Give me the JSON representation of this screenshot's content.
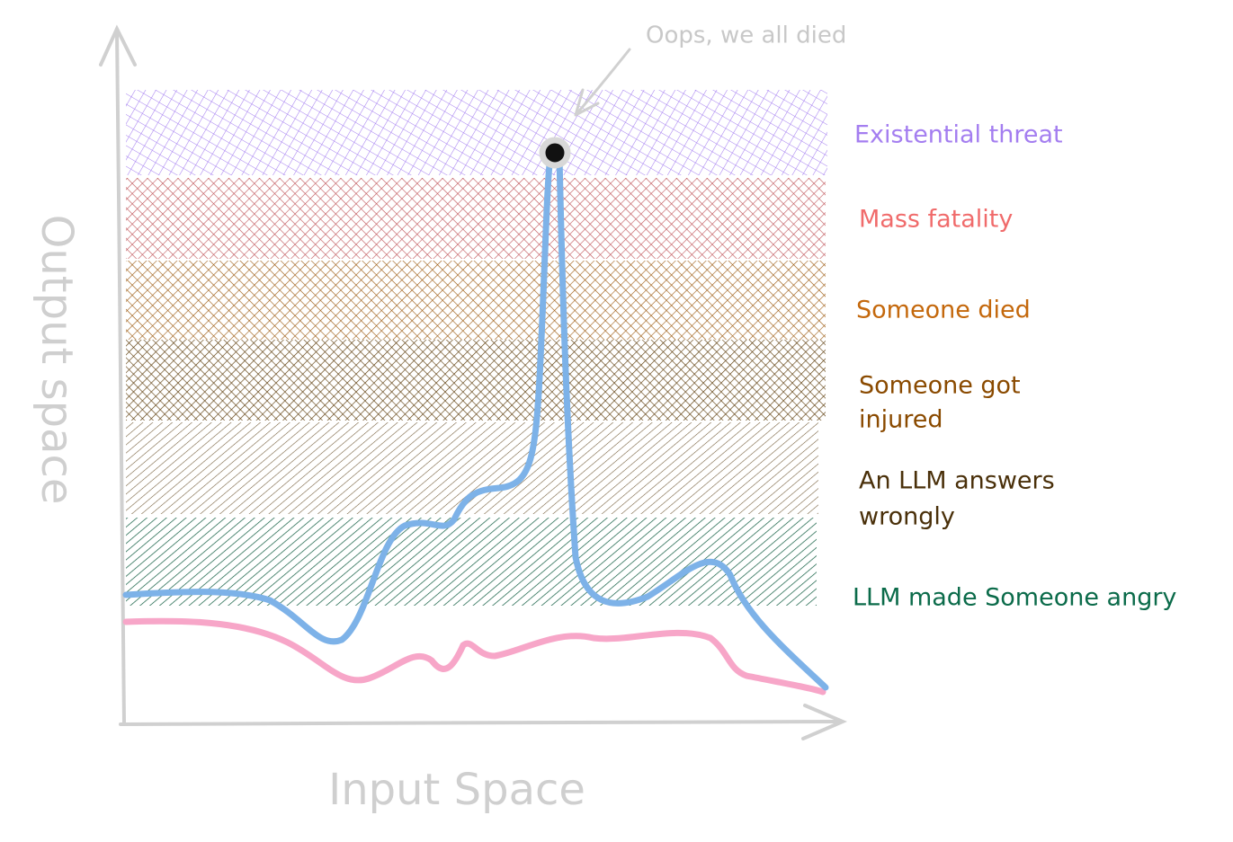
{
  "axes": {
    "x_label": "Input Space",
    "y_label": "Output space"
  },
  "annotation": "Oops, we all died",
  "bands": [
    {
      "label": [
        "Existential threat"
      ]
    },
    {
      "label": [
        "Mass fatality"
      ]
    },
    {
      "label": [
        "Someone died"
      ]
    },
    {
      "label": [
        "Someone got",
        "injured"
      ]
    },
    {
      "label": [
        "An LLM answers",
        "wrongly"
      ]
    },
    {
      "label": [
        "LLM made Someone angry"
      ]
    }
  ]
}
